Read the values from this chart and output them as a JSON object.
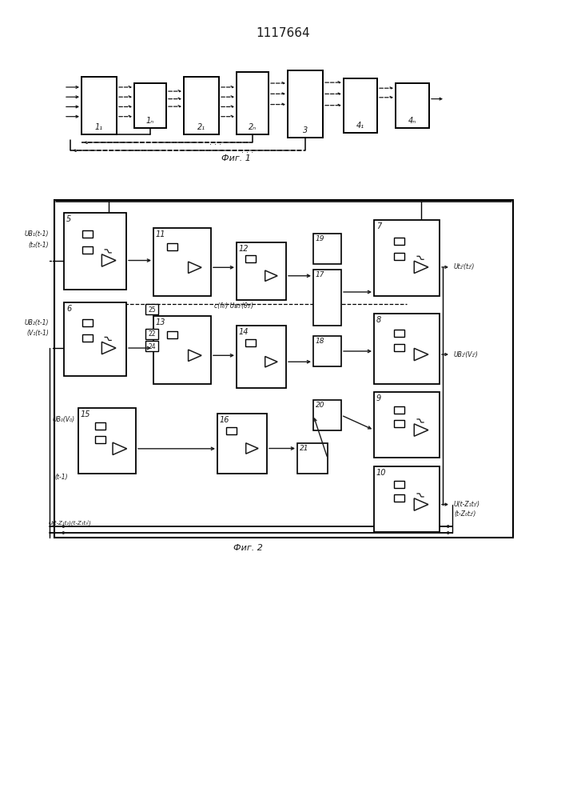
{
  "title": "1117664",
  "fig1_label": "Фиг. 1",
  "fig2_label": "Фиг. 2",
  "bg_color": "#ffffff",
  "lc": "#1a1a1a"
}
